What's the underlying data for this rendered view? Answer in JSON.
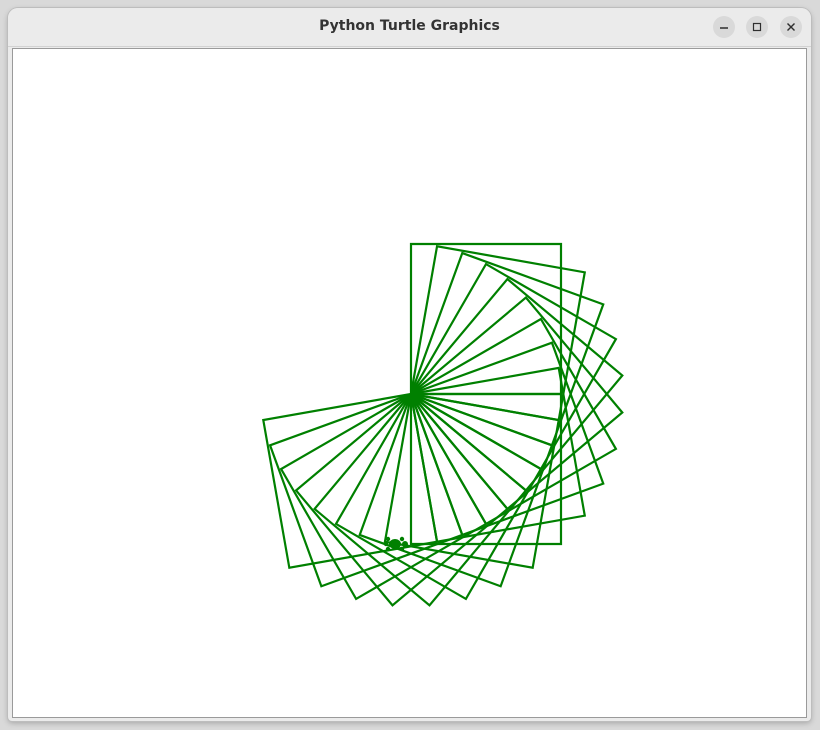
{
  "window": {
    "title": "Python Turtle Graphics"
  },
  "titlebar_buttons": [
    {
      "name": "minimize",
      "icon": "minimize-icon"
    },
    {
      "name": "maximize",
      "icon": "maximize-icon"
    },
    {
      "name": "close",
      "icon": "close-icon"
    }
  ],
  "drawing": {
    "pen_color": "#008000",
    "square_side": 150,
    "square_count": 18,
    "turn_between_squares_deg": -10,
    "turtle_icon": "turtle-icon"
  }
}
